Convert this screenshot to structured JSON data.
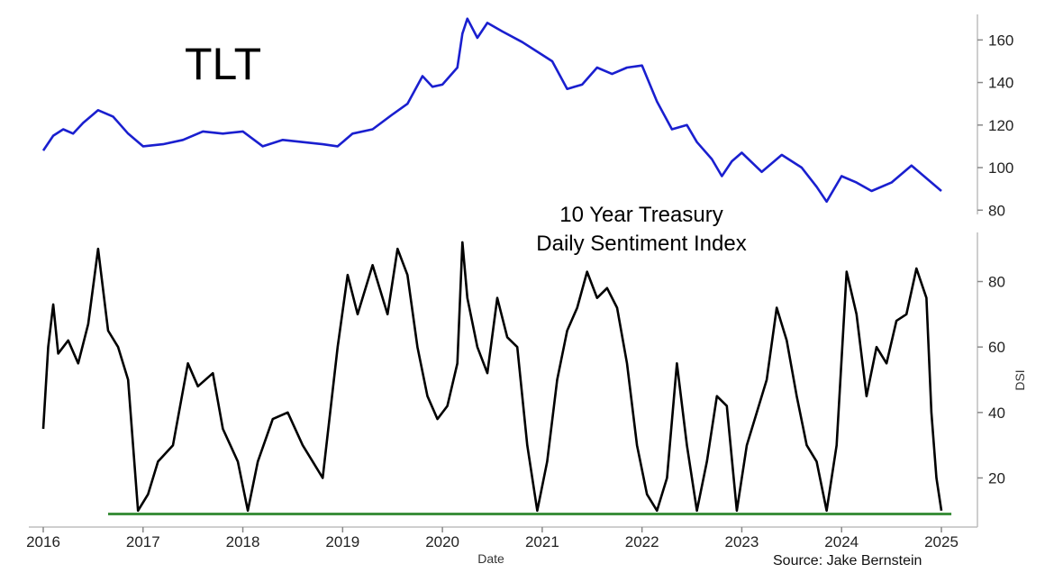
{
  "chart_data": [
    {
      "type": "line",
      "title": "TLT",
      "ylim": [
        78,
        172
      ],
      "xlim": [
        2016.0,
        2025.1
      ],
      "yticks": [
        80,
        100,
        120,
        140,
        160
      ],
      "colors": {
        "line": "#1a1fcf"
      },
      "series": [
        {
          "x": [
            2016.0,
            2016.1,
            2016.2,
            2016.3,
            2016.4,
            2016.55,
            2016.7,
            2016.85,
            2017.0,
            2017.2,
            2017.4,
            2017.6,
            2017.8,
            2018.0,
            2018.2,
            2018.4,
            2018.6,
            2018.8,
            2018.95,
            2019.1,
            2019.3,
            2019.5,
            2019.65,
            2019.8,
            2019.9,
            2020.0,
            2020.15,
            2020.2,
            2020.25,
            2020.35,
            2020.45,
            2020.6,
            2020.8,
            2021.0,
            2021.1,
            2021.25,
            2021.4,
            2021.55,
            2021.7,
            2021.85,
            2022.0,
            2022.15,
            2022.3,
            2022.45,
            2022.55,
            2022.7,
            2022.8,
            2022.9,
            2023.0,
            2023.2,
            2023.4,
            2023.6,
            2023.75,
            2023.85,
            2024.0,
            2024.15,
            2024.3,
            2024.5,
            2024.7,
            2024.85,
            2025.0
          ],
          "y": [
            108,
            115,
            118,
            116,
            121,
            127,
            124,
            116,
            110,
            111,
            113,
            117,
            116,
            117,
            110,
            113,
            112,
            111,
            110,
            116,
            118,
            125,
            130,
            143,
            138,
            139,
            147,
            163,
            170,
            161,
            168,
            164,
            159,
            153,
            150,
            137,
            139,
            147,
            144,
            147,
            148,
            131,
            118,
            120,
            112,
            104,
            96,
            103,
            107,
            98,
            106,
            100,
            91,
            84,
            96,
            93,
            89,
            93,
            101,
            95,
            89
          ]
        }
      ]
    },
    {
      "type": "line",
      "title": "10 Year Treasury",
      "subtitle": "Daily Sentiment Index",
      "xlabel": "Date",
      "ylabel": "DSI",
      "ylim": [
        5,
        95
      ],
      "xlim": [
        2016.0,
        2025.1
      ],
      "yticks": [
        20,
        40,
        60,
        80
      ],
      "xticks": [
        "2016",
        "2017",
        "2018",
        "2019",
        "2020",
        "2021",
        "2022",
        "2023",
        "2024",
        "2025"
      ],
      "reference_line": {
        "y": 9,
        "x_start": 2016.65,
        "x_end": 2025.1,
        "color": "#3c8f3c"
      },
      "colors": {
        "line": "#000000"
      },
      "series": [
        {
          "x": [
            2016.0,
            2016.05,
            2016.1,
            2016.15,
            2016.25,
            2016.35,
            2016.45,
            2016.55,
            2016.65,
            2016.75,
            2016.85,
            2016.95,
            2017.05,
            2017.15,
            2017.3,
            2017.45,
            2017.55,
            2017.7,
            2017.8,
            2017.95,
            2018.05,
            2018.15,
            2018.3,
            2018.45,
            2018.6,
            2018.7,
            2018.8,
            2018.95,
            2019.05,
            2019.15,
            2019.3,
            2019.45,
            2019.55,
            2019.65,
            2019.75,
            2019.85,
            2019.95,
            2020.05,
            2020.15,
            2020.2,
            2020.25,
            2020.35,
            2020.45,
            2020.55,
            2020.65,
            2020.75,
            2020.85,
            2020.95,
            2021.05,
            2021.15,
            2021.25,
            2021.35,
            2021.45,
            2021.55,
            2021.65,
            2021.75,
            2021.85,
            2021.95,
            2022.05,
            2022.15,
            2022.25,
            2022.35,
            2022.45,
            2022.55,
            2022.65,
            2022.75,
            2022.85,
            2022.95,
            2023.05,
            2023.15,
            2023.25,
            2023.35,
            2023.45,
            2023.55,
            2023.65,
            2023.75,
            2023.85,
            2023.95,
            2024.05,
            2024.15,
            2024.25,
            2024.35,
            2024.45,
            2024.55,
            2024.65,
            2024.75,
            2024.85,
            2024.9,
            2024.95,
            2025.0
          ],
          "y": [
            35,
            60,
            73,
            58,
            62,
            55,
            67,
            90,
            65,
            60,
            50,
            10,
            15,
            25,
            30,
            55,
            48,
            52,
            35,
            25,
            10,
            25,
            38,
            40,
            30,
            25,
            20,
            60,
            82,
            70,
            85,
            70,
            90,
            82,
            60,
            45,
            38,
            42,
            55,
            92,
            75,
            60,
            52,
            75,
            63,
            60,
            30,
            10,
            25,
            50,
            65,
            72,
            83,
            75,
            78,
            72,
            55,
            30,
            15,
            10,
            20,
            55,
            30,
            10,
            25,
            45,
            42,
            10,
            30,
            40,
            50,
            72,
            62,
            45,
            30,
            25,
            10,
            30,
            83,
            70,
            45,
            60,
            55,
            68,
            70,
            84,
            75,
            40,
            20,
            10
          ]
        }
      ]
    }
  ],
  "source_text": "Source: Jake Bernstein"
}
